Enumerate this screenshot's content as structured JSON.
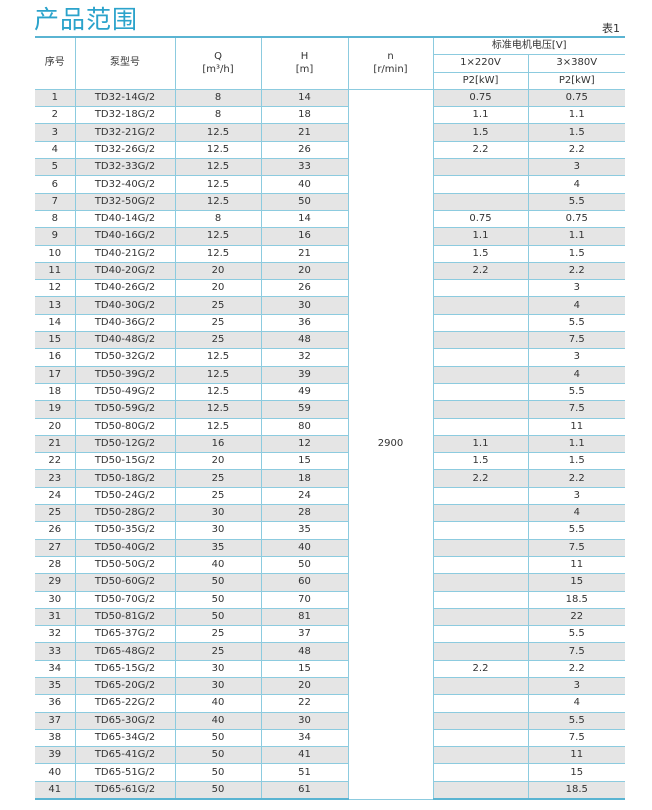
{
  "title": "产品范围",
  "table_no": "表1",
  "headers": {
    "no": "序号",
    "model": "泵型号",
    "q": "Q",
    "q_unit": "[m³/h]",
    "h": "H",
    "h_unit": "[m]",
    "n": "n",
    "n_unit": "[r/min]",
    "voltage": "标准电机电压[V]",
    "v1": "1×220V",
    "v3": "3×380V",
    "p2": "P2[kW]"
  },
  "n_value": "2900",
  "rows": [
    [
      "1",
      "TD32-14G/2",
      "8",
      "14",
      "0.75",
      "0.75"
    ],
    [
      "2",
      "TD32-18G/2",
      "8",
      "18",
      "1.1",
      "1.1"
    ],
    [
      "3",
      "TD32-21G/2",
      "12.5",
      "21",
      "1.5",
      "1.5"
    ],
    [
      "4",
      "TD32-26G/2",
      "12.5",
      "26",
      "2.2",
      "2.2"
    ],
    [
      "5",
      "TD32-33G/2",
      "12.5",
      "33",
      "",
      "3"
    ],
    [
      "6",
      "TD32-40G/2",
      "12.5",
      "40",
      "",
      "4"
    ],
    [
      "7",
      "TD32-50G/2",
      "12.5",
      "50",
      "",
      "5.5"
    ],
    [
      "8",
      "TD40-14G/2",
      "8",
      "14",
      "0.75",
      "0.75"
    ],
    [
      "9",
      "TD40-16G/2",
      "12.5",
      "16",
      "1.1",
      "1.1"
    ],
    [
      "10",
      "TD40-21G/2",
      "12.5",
      "21",
      "1.5",
      "1.5"
    ],
    [
      "11",
      "TD40-20G/2",
      "20",
      "20",
      "2.2",
      "2.2"
    ],
    [
      "12",
      "TD40-26G/2",
      "20",
      "26",
      "",
      "3"
    ],
    [
      "13",
      "TD40-30G/2",
      "25",
      "30",
      "",
      "4"
    ],
    [
      "14",
      "TD40-36G/2",
      "25",
      "36",
      "",
      "5.5"
    ],
    [
      "15",
      "TD40-48G/2",
      "25",
      "48",
      "",
      "7.5"
    ],
    [
      "16",
      "TD50-32G/2",
      "12.5",
      "32",
      "",
      "3"
    ],
    [
      "17",
      "TD50-39G/2",
      "12.5",
      "39",
      "",
      "4"
    ],
    [
      "18",
      "TD50-49G/2",
      "12.5",
      "49",
      "",
      "5.5"
    ],
    [
      "19",
      "TD50-59G/2",
      "12.5",
      "59",
      "",
      "7.5"
    ],
    [
      "20",
      "TD50-80G/2",
      "12.5",
      "80",
      "",
      "11"
    ],
    [
      "21",
      "TD50-12G/2",
      "16",
      "12",
      "1.1",
      "1.1"
    ],
    [
      "22",
      "TD50-15G/2",
      "20",
      "15",
      "1.5",
      "1.5"
    ],
    [
      "23",
      "TD50-18G/2",
      "25",
      "18",
      "2.2",
      "2.2"
    ],
    [
      "24",
      "TD50-24G/2",
      "25",
      "24",
      "",
      "3"
    ],
    [
      "25",
      "TD50-28G/2",
      "30",
      "28",
      "",
      "4"
    ],
    [
      "26",
      "TD50-35G/2",
      "30",
      "35",
      "",
      "5.5"
    ],
    [
      "27",
      "TD50-40G/2",
      "35",
      "40",
      "",
      "7.5"
    ],
    [
      "28",
      "TD50-50G/2",
      "40",
      "50",
      "",
      "11"
    ],
    [
      "29",
      "TD50-60G/2",
      "50",
      "60",
      "",
      "15"
    ],
    [
      "30",
      "TD50-70G/2",
      "50",
      "70",
      "",
      "18.5"
    ],
    [
      "31",
      "TD50-81G/2",
      "50",
      "81",
      "",
      "22"
    ],
    [
      "32",
      "TD65-37G/2",
      "25",
      "37",
      "",
      "5.5"
    ],
    [
      "33",
      "TD65-48G/2",
      "25",
      "48",
      "",
      "7.5"
    ],
    [
      "34",
      "TD65-15G/2",
      "30",
      "15",
      "2.2",
      "2.2"
    ],
    [
      "35",
      "TD65-20G/2",
      "30",
      "20",
      "",
      "3"
    ],
    [
      "36",
      "TD65-22G/2",
      "40",
      "22",
      "",
      "4"
    ],
    [
      "37",
      "TD65-30G/2",
      "40",
      "30",
      "",
      "5.5"
    ],
    [
      "38",
      "TD65-34G/2",
      "50",
      "34",
      "",
      "7.5"
    ],
    [
      "39",
      "TD65-41G/2",
      "50",
      "41",
      "",
      "11"
    ],
    [
      "40",
      "TD65-51G/2",
      "50",
      "51",
      "",
      "15"
    ],
    [
      "41",
      "TD65-61G/2",
      "50",
      "61",
      "",
      "18.5"
    ]
  ]
}
